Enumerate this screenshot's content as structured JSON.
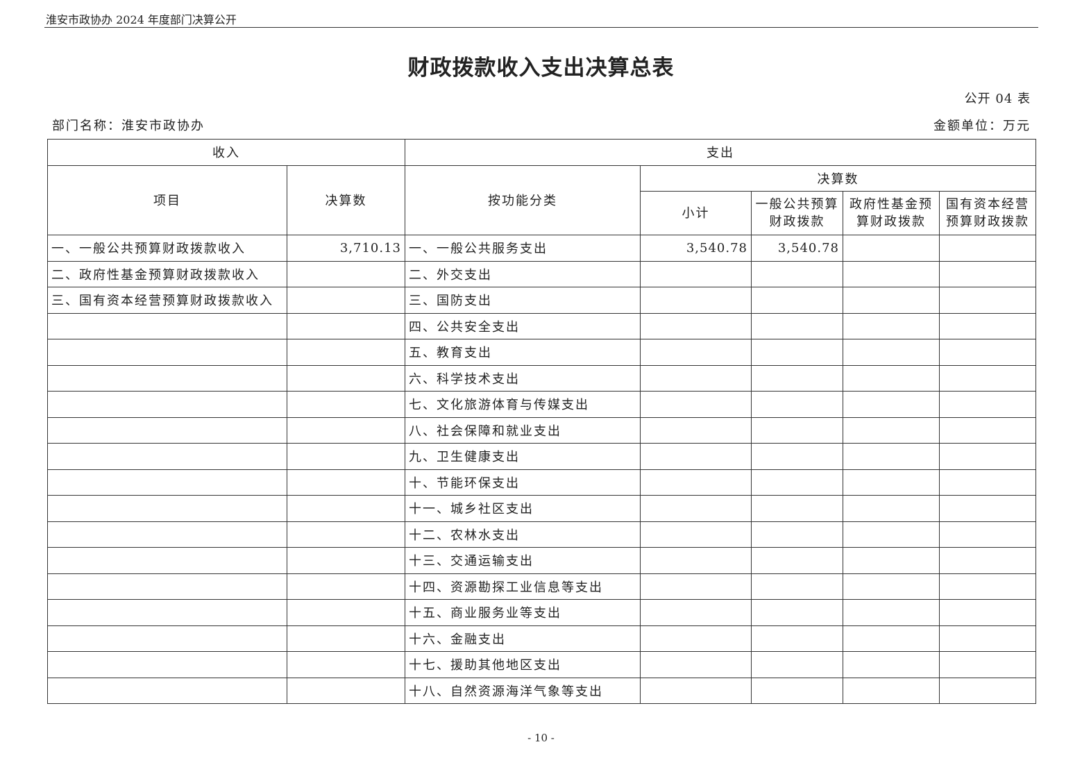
{
  "header": {
    "running_title": "淮安市政协办 2024 年度部门决算公开"
  },
  "title": "财政拨款收入支出决算总表",
  "table_no": "公开 04 表",
  "department": "部门名称：淮安市政协办",
  "unit": "金额单位：万元",
  "table": {
    "income_header": "收入",
    "expense_header": "支出",
    "col_item": "项目",
    "col_amount": "决算数",
    "col_function": "按功能分类",
    "col_final": "决算数",
    "col_subtotal": "小计",
    "col_general": "一般公共预算财政拨款",
    "col_fund": "政府性基金预算财政拨款",
    "col_state": "国有资本经营预算财政拨款",
    "rows": [
      {
        "income_item": "一、一般公共预算财政拨款收入",
        "income_amount": "3,710.13",
        "expense_item": "一、一般公共服务支出",
        "subtotal": "3,540.78",
        "general": "3,540.78",
        "fund": "",
        "state": ""
      },
      {
        "income_item": "二、政府性基金预算财政拨款收入",
        "income_amount": "",
        "expense_item": "二、外交支出",
        "subtotal": "",
        "general": "",
        "fund": "",
        "state": ""
      },
      {
        "income_item": "三、国有资本经营预算财政拨款收入",
        "income_amount": "",
        "expense_item": "三、国防支出",
        "subtotal": "",
        "general": "",
        "fund": "",
        "state": ""
      },
      {
        "income_item": "",
        "income_amount": "",
        "expense_item": "四、公共安全支出",
        "subtotal": "",
        "general": "",
        "fund": "",
        "state": ""
      },
      {
        "income_item": "",
        "income_amount": "",
        "expense_item": "五、教育支出",
        "subtotal": "",
        "general": "",
        "fund": "",
        "state": ""
      },
      {
        "income_item": "",
        "income_amount": "",
        "expense_item": "六、科学技术支出",
        "subtotal": "",
        "general": "",
        "fund": "",
        "state": ""
      },
      {
        "income_item": "",
        "income_amount": "",
        "expense_item": "七、文化旅游体育与传媒支出",
        "subtotal": "",
        "general": "",
        "fund": "",
        "state": ""
      },
      {
        "income_item": "",
        "income_amount": "",
        "expense_item": "八、社会保障和就业支出",
        "subtotal": "",
        "general": "",
        "fund": "",
        "state": ""
      },
      {
        "income_item": "",
        "income_amount": "",
        "expense_item": "九、卫生健康支出",
        "subtotal": "",
        "general": "",
        "fund": "",
        "state": ""
      },
      {
        "income_item": "",
        "income_amount": "",
        "expense_item": "十、节能环保支出",
        "subtotal": "",
        "general": "",
        "fund": "",
        "state": ""
      },
      {
        "income_item": "",
        "income_amount": "",
        "expense_item": "十一、城乡社区支出",
        "subtotal": "",
        "general": "",
        "fund": "",
        "state": ""
      },
      {
        "income_item": "",
        "income_amount": "",
        "expense_item": "十二、农林水支出",
        "subtotal": "",
        "general": "",
        "fund": "",
        "state": ""
      },
      {
        "income_item": "",
        "income_amount": "",
        "expense_item": "十三、交通运输支出",
        "subtotal": "",
        "general": "",
        "fund": "",
        "state": ""
      },
      {
        "income_item": "",
        "income_amount": "",
        "expense_item": "十四、资源勘探工业信息等支出",
        "subtotal": "",
        "general": "",
        "fund": "",
        "state": ""
      },
      {
        "income_item": "",
        "income_amount": "",
        "expense_item": "十五、商业服务业等支出",
        "subtotal": "",
        "general": "",
        "fund": "",
        "state": ""
      },
      {
        "income_item": "",
        "income_amount": "",
        "expense_item": "十六、金融支出",
        "subtotal": "",
        "general": "",
        "fund": "",
        "state": ""
      },
      {
        "income_item": "",
        "income_amount": "",
        "expense_item": "十七、援助其他地区支出",
        "subtotal": "",
        "general": "",
        "fund": "",
        "state": ""
      },
      {
        "income_item": "",
        "income_amount": "",
        "expense_item": "十八、自然资源海洋气象等支出",
        "subtotal": "",
        "general": "",
        "fund": "",
        "state": ""
      }
    ]
  },
  "page_number": "- 10 -"
}
